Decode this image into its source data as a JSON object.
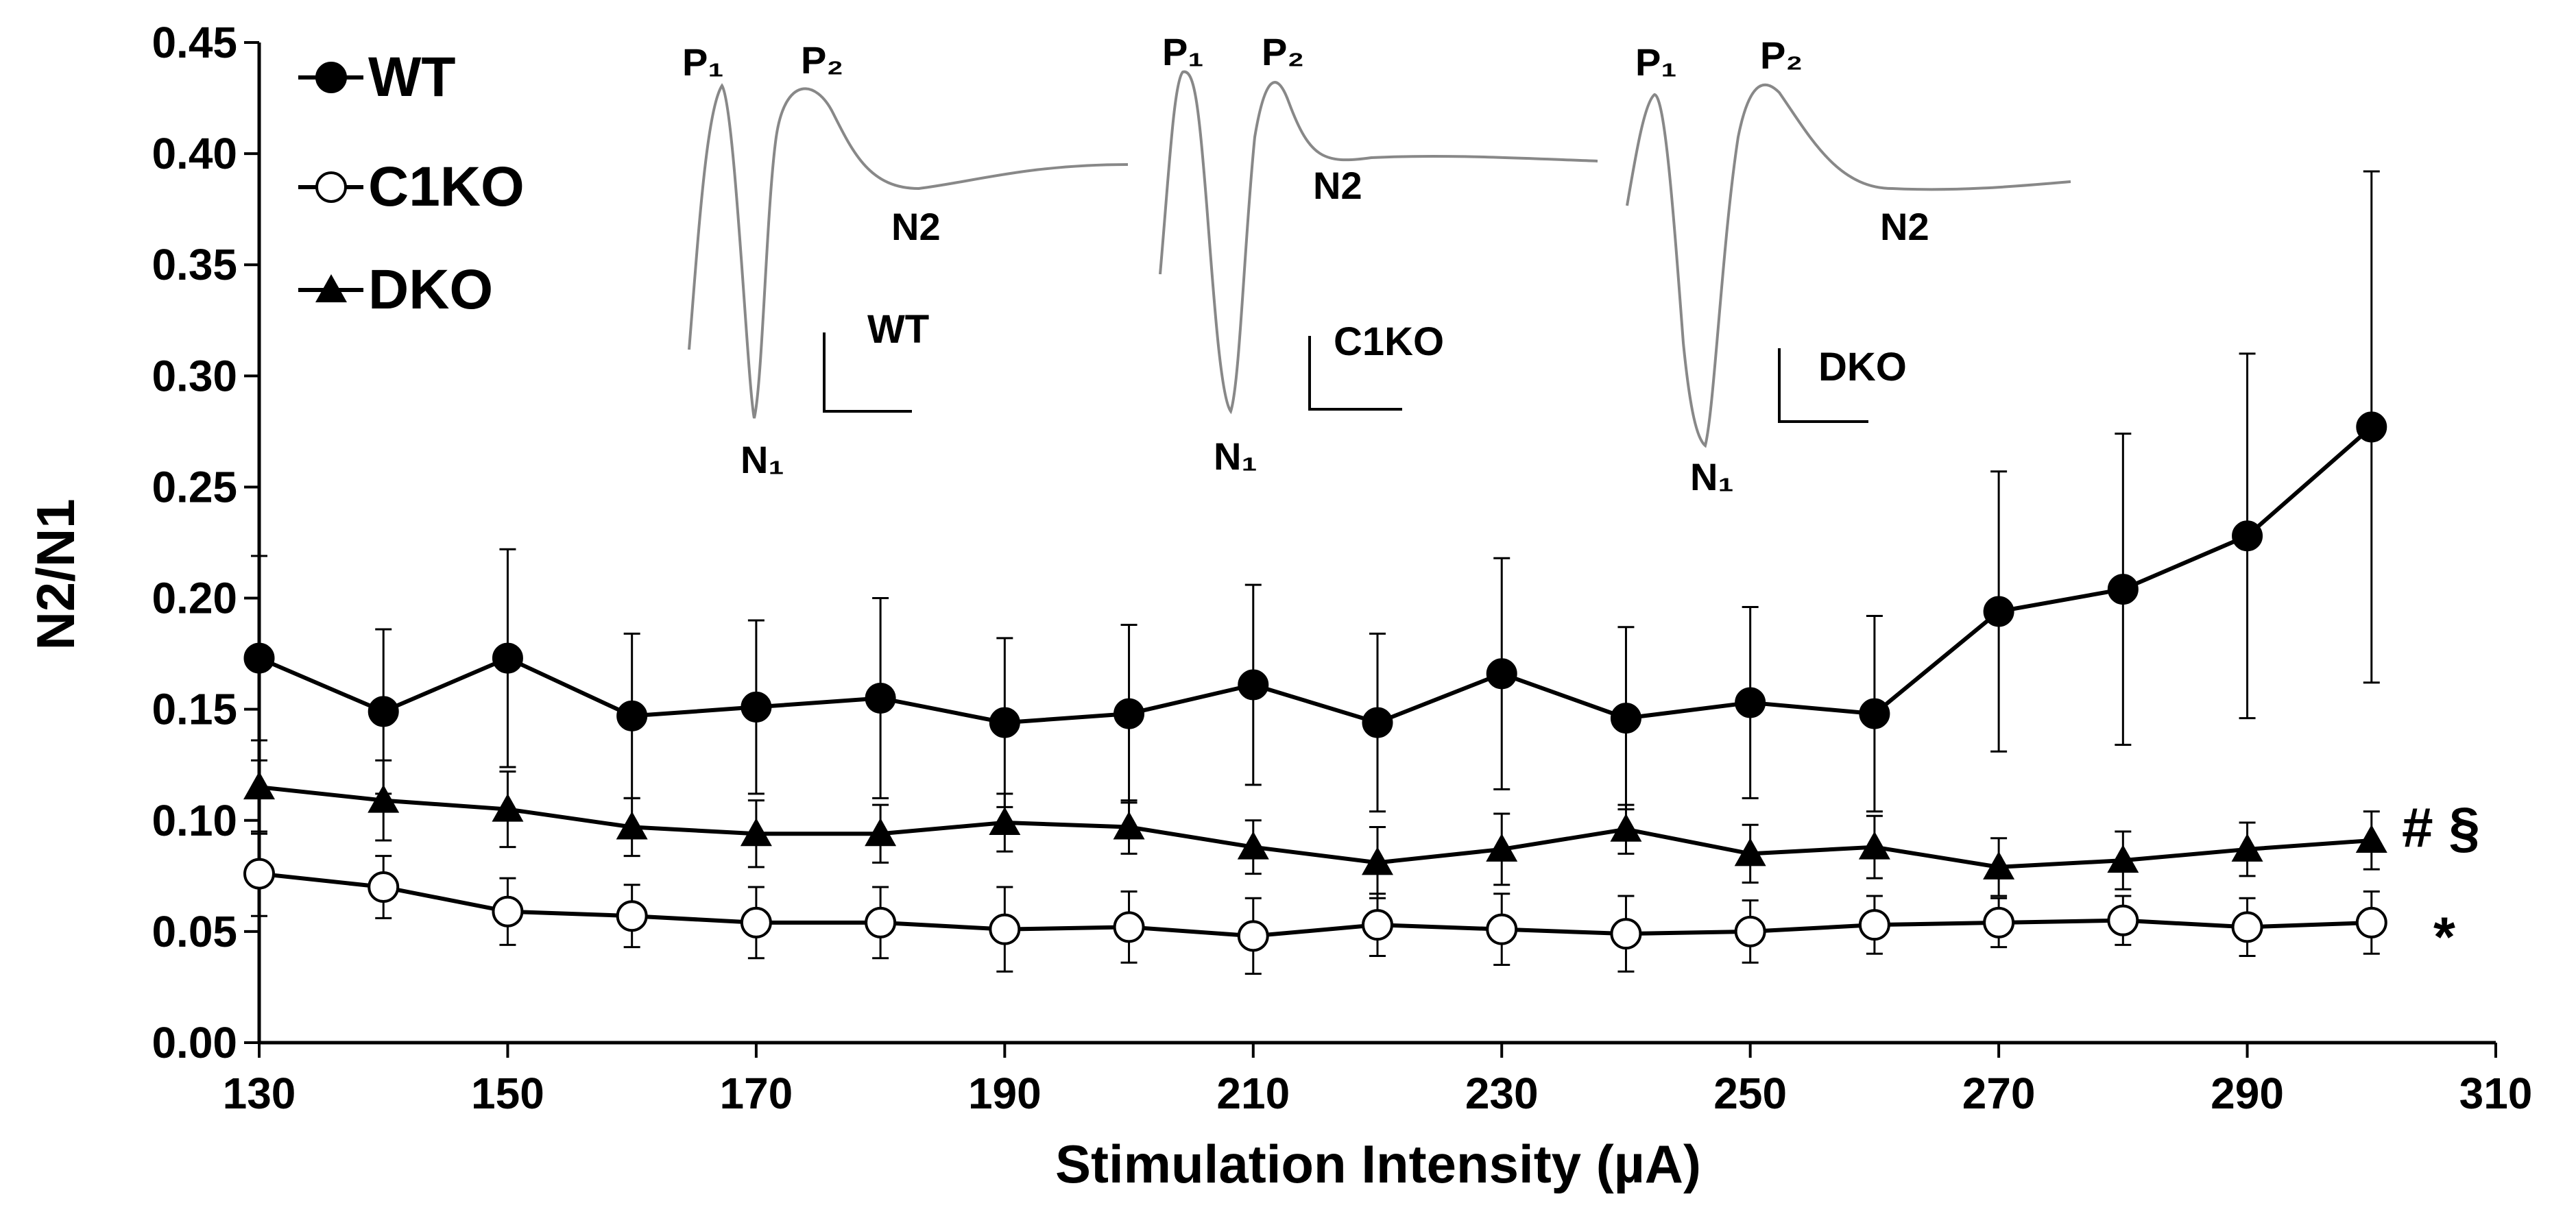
{
  "chart_data": {
    "type": "line",
    "title": "",
    "xlabel": "Stimulation Intensity (µA)",
    "ylabel": "N2/N1",
    "xlim": [
      130,
      310
    ],
    "ylim": [
      0,
      0.45
    ],
    "x_ticks": [
      "130",
      "150",
      "170",
      "190",
      "210",
      "230",
      "250",
      "270",
      "290",
      "310"
    ],
    "y_ticks": [
      "0.00",
      "0.05",
      "0.10",
      "0.15",
      "0.20",
      "0.25",
      "0.30",
      "0.35",
      "0.40",
      "0.45"
    ],
    "x": [
      130,
      140,
      150,
      160,
      170,
      180,
      190,
      200,
      210,
      220,
      230,
      240,
      250,
      260,
      270,
      280,
      290,
      300
    ],
    "legend_position": "top-left",
    "grid": false,
    "series": [
      {
        "name": "WT",
        "marker": "filled-circle",
        "color": "#000000",
        "values": [
          0.173,
          0.149,
          0.173,
          0.147,
          0.151,
          0.155,
          0.144,
          0.148,
          0.161,
          0.144,
          0.166,
          0.146,
          0.153,
          0.148,
          0.194,
          0.204,
          0.228,
          0.277
        ],
        "error": [
          0.046,
          0.037,
          0.049,
          0.037,
          0.039,
          0.045,
          0.038,
          0.04,
          0.045,
          0.04,
          0.052,
          0.041,
          0.043,
          0.044,
          0.063,
          0.07,
          0.082,
          0.115
        ]
      },
      {
        "name": "C1KO",
        "marker": "open-circle",
        "color": "#000000",
        "values": [
          0.076,
          0.07,
          0.059,
          0.057,
          0.054,
          0.054,
          0.051,
          0.052,
          0.048,
          0.053,
          0.051,
          0.049,
          0.05,
          0.053,
          0.054,
          0.055,
          0.052,
          0.054
        ],
        "error": [
          0.019,
          0.014,
          0.015,
          0.014,
          0.016,
          0.016,
          0.019,
          0.016,
          0.017,
          0.014,
          0.016,
          0.017,
          0.014,
          0.013,
          0.011,
          0.011,
          0.013,
          0.014
        ]
      },
      {
        "name": "DKO",
        "marker": "filled-triangle",
        "color": "#000000",
        "values": [
          0.115,
          0.109,
          0.105,
          0.097,
          0.094,
          0.094,
          0.099,
          0.097,
          0.088,
          0.081,
          0.087,
          0.096,
          0.085,
          0.088,
          0.079,
          0.082,
          0.087,
          0.091
        ],
        "error": [
          0.021,
          0.018,
          0.017,
          0.013,
          0.015,
          0.013,
          0.013,
          0.012,
          0.012,
          0.016,
          0.016,
          0.011,
          0.013,
          0.014,
          0.013,
          0.013,
          0.012,
          0.013
        ]
      }
    ],
    "annotations": [
      {
        "text": "# §",
        "series": "DKO"
      },
      {
        "text": "*",
        "series": "C1KO"
      }
    ],
    "insets": [
      {
        "label": "WT",
        "peak1": "P₁",
        "peak2": "P₂",
        "trough1": "N₁",
        "trough2": "N2"
      },
      {
        "label": "C1KO",
        "peak1": "P₁",
        "peak2": "P₂",
        "trough1": "N₁",
        "trough2": "N2"
      },
      {
        "label": "DKO",
        "peak1": "P₁",
        "peak2": "P₂",
        "trough1": "N₁",
        "trough2": "N2"
      }
    ]
  }
}
